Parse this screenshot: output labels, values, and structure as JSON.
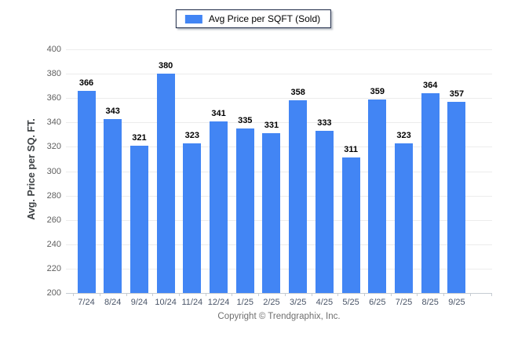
{
  "chart_data": {
    "type": "bar",
    "legend_label": "Avg Price per SQFT (Sold)",
    "categories": [
      "7/24",
      "8/24",
      "9/24",
      "10/24",
      "11/24",
      "12/24",
      "1/25",
      "2/25",
      "3/25",
      "4/25",
      "5/25",
      "6/25",
      "7/25",
      "8/25",
      "9/25"
    ],
    "values": [
      366,
      343,
      321,
      380,
      323,
      341,
      335,
      331,
      358,
      333,
      311,
      359,
      323,
      364,
      357
    ],
    "title": "",
    "xlabel": "",
    "ylabel": "Avg. Price per SQ. FT.",
    "ylim": [
      200,
      400
    ],
    "ytick_step": 20,
    "bar_color": "#4285f4",
    "grid": true,
    "legend_position": "top-center"
  },
  "footer": {
    "copyright": "Copyright © Trendgraphix, Inc."
  }
}
